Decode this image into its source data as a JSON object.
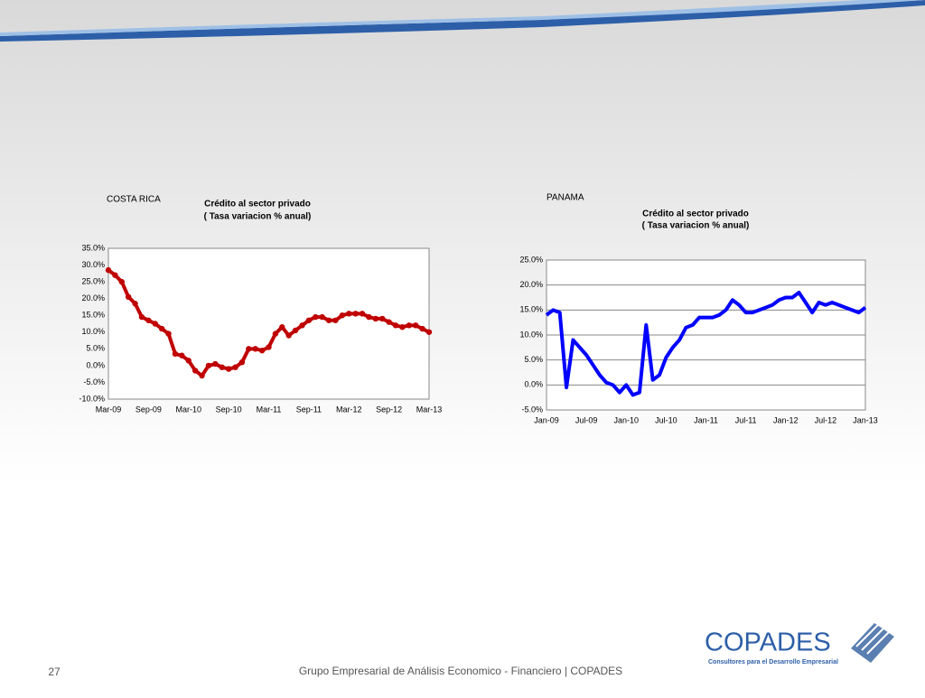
{
  "chart_data": [
    {
      "type": "line",
      "region": "COSTA RICA",
      "title": "Crédito al sector privado",
      "subtitle": "( Tasa variacion % anual)",
      "categories": [
        "Mar-09",
        null,
        null,
        null,
        null,
        null,
        "Sep-09",
        null,
        null,
        null,
        null,
        null,
        "Mar-10",
        null,
        null,
        null,
        null,
        null,
        "Sep-10",
        null,
        null,
        null,
        null,
        null,
        "Mar-11",
        null,
        null,
        null,
        null,
        null,
        "Sep-11",
        null,
        null,
        null,
        null,
        null,
        "Mar-12",
        null,
        null,
        null,
        null,
        null,
        "Sep-12",
        null,
        null,
        null,
        null,
        null,
        "Mar-13"
      ],
      "series": [
        {
          "color": "#c00000",
          "values": [
            28.5,
            27,
            25,
            20.5,
            18.5,
            14.5,
            13.5,
            12.5,
            11,
            9.5,
            3.5,
            3,
            1.5,
            -1.5,
            -3,
            0,
            0.5,
            -0.5,
            -1,
            -0.5,
            1,
            5,
            5,
            4.5,
            5.5,
            9.5,
            11.5,
            9,
            10.5,
            12,
            13.5,
            14.5,
            14.5,
            13.5,
            13.5,
            15,
            15.5,
            15.5,
            15.5,
            14.5,
            14,
            14,
            13,
            12,
            11.5,
            12,
            12,
            11,
            10
          ]
        }
      ],
      "markers": true,
      "grid": false,
      "ylim": [
        -10,
        35
      ],
      "yticks": [
        {
          "value": -10,
          "label": "-10.0%"
        },
        {
          "value": -5,
          "label": "-5.0%"
        },
        {
          "value": 0,
          "label": "0.0%"
        },
        {
          "value": 5,
          "label": "5.0%"
        },
        {
          "value": 10,
          "label": "10.0%"
        },
        {
          "value": 15,
          "label": "15.0%"
        },
        {
          "value": 20,
          "label": "20.0%"
        },
        {
          "value": 25,
          "label": "25.0%"
        },
        {
          "value": 30,
          "label": "30.0%"
        },
        {
          "value": 35,
          "label": "35.0%"
        }
      ]
    },
    {
      "type": "line",
      "region": "PANAMA",
      "title": "Crédito al sector privado",
      "subtitle": "( Tasa variacion % anual)",
      "categories": [
        "Jan-09",
        null,
        null,
        null,
        null,
        null,
        "Jul-09",
        null,
        null,
        null,
        null,
        null,
        "Jan-10",
        null,
        null,
        null,
        null,
        null,
        "Jul-10",
        null,
        null,
        null,
        null,
        null,
        "Jan-11",
        null,
        null,
        null,
        null,
        null,
        "Jul-11",
        null,
        null,
        null,
        null,
        null,
        "Jan-12",
        null,
        null,
        null,
        null,
        null,
        "Jul-12",
        null,
        null,
        null,
        null,
        null,
        "Jan-13"
      ],
      "series": [
        {
          "color": "#0000ff",
          "values": [
            14,
            15,
            14.5,
            -0.5,
            9,
            7.5,
            6,
            4,
            2,
            0.5,
            0,
            -1.5,
            0,
            -2,
            -1.5,
            12,
            1,
            2,
            5.5,
            7.5,
            9,
            11.5,
            12,
            13.5,
            13.5,
            13.5,
            14,
            15,
            17,
            16,
            14.5,
            14.5,
            15,
            15.5,
            16,
            17,
            17.5,
            17.5,
            18.5,
            16.5,
            14.5,
            16.5,
            16,
            16.5,
            16,
            15.5,
            15,
            14.5,
            15.5
          ]
        }
      ],
      "markers": false,
      "grid": true,
      "ylim": [
        -5,
        25
      ],
      "yticks": [
        {
          "value": -5,
          "label": "-5.0%"
        },
        {
          "value": 0,
          "label": "0.0%"
        },
        {
          "value": 5,
          "label": "5.0%"
        },
        {
          "value": 10,
          "label": "10.0%"
        },
        {
          "value": 15,
          "label": "15.0%"
        },
        {
          "value": 20,
          "label": "20.0%"
        },
        {
          "value": 25,
          "label": "25.0%"
        }
      ]
    }
  ],
  "footer": {
    "page": "27",
    "text": "Grupo Empresarial de Análisis Economico - Financiero | COPADES"
  },
  "logo": {
    "name": "COPADES",
    "tagline": "Consultores para el Desarrollo Empresarial"
  }
}
